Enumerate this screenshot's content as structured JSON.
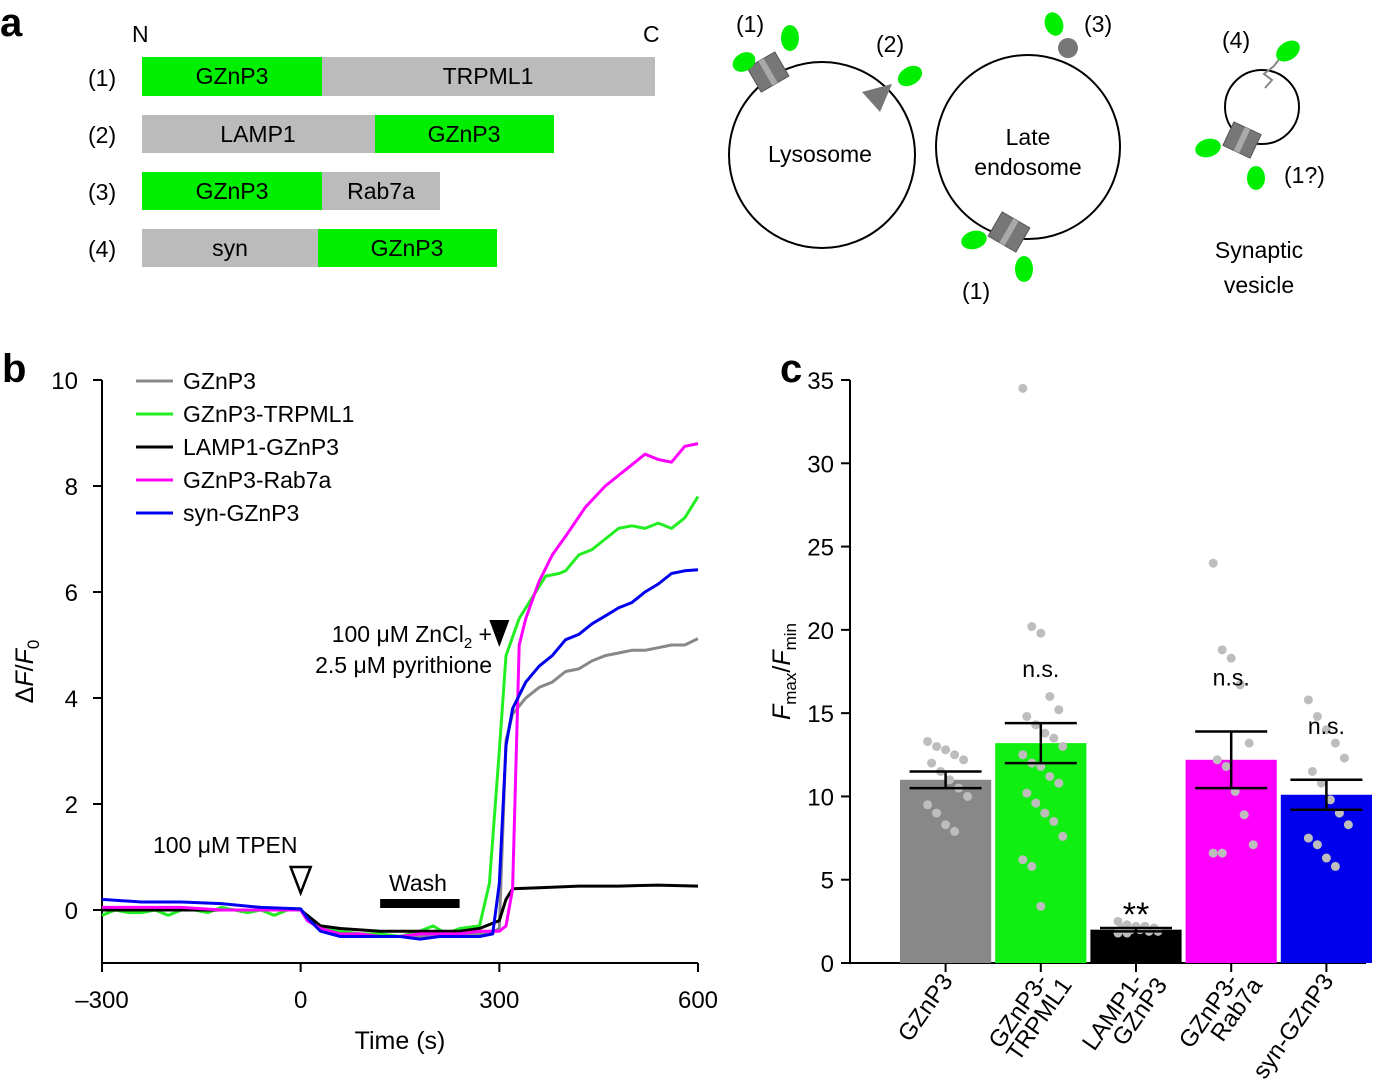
{
  "panel_a": {
    "label": "a",
    "n_term": "N",
    "c_term": "C",
    "constructs": [
      {
        "num": "(1)",
        "segments": [
          {
            "text": "GZnP3",
            "color": "#00ee00"
          },
          {
            "text": "TRPML1",
            "color": "#bbbbbb"
          }
        ]
      },
      {
        "num": "(2)",
        "segments": [
          {
            "text": "LAMP1",
            "color": "#bbbbbb"
          },
          {
            "text": "GZnP3",
            "color": "#00ee00"
          }
        ]
      },
      {
        "num": "(3)",
        "segments": [
          {
            "text": "GZnP3",
            "color": "#00ee00"
          },
          {
            "text": "Rab7a",
            "color": "#bbbbbb"
          }
        ]
      },
      {
        "num": "(4)",
        "segments": [
          {
            "text": "syn",
            "color": "#bbbbbb"
          },
          {
            "text": "GZnP3",
            "color": "#00ee00"
          }
        ]
      }
    ],
    "organelles": {
      "lysosome": {
        "name": "Lysosome",
        "marks": [
          "(1)",
          "(2)"
        ]
      },
      "late_endosome": {
        "name_line1": "Late",
        "name_line2": "endosome",
        "marks": [
          "(3)",
          "(1)"
        ]
      },
      "synaptic_vesicle": {
        "name_line1": "Synaptic",
        "name_line2": "vesicle",
        "marks": [
          "(4)",
          "(1?)"
        ]
      }
    }
  },
  "chart_data": [
    {
      "panel": "b",
      "type": "line",
      "xlabel": "Time (s)",
      "ylabel": "ΔF/F0",
      "xlim": [
        -300,
        600
      ],
      "ylim": [
        -1,
        10
      ],
      "xticks": [
        -300,
        0,
        300,
        600
      ],
      "xtick_labels": [
        "–300",
        "0",
        "300",
        "600"
      ],
      "yticks": [
        0,
        2,
        4,
        6,
        8,
        10
      ],
      "annotations": {
        "tpen": "100 μM TPEN",
        "wash": "Wash",
        "wash_range": [
          120,
          240
        ],
        "zn_line1": "100 μM ZnCl2 +",
        "zn_line2": "2.5 μM pyrithione",
        "tpen_time": 0,
        "zn_time": 300
      },
      "series": [
        {
          "name": "GZnP3",
          "color": "#888888",
          "x": [
            -300,
            -270,
            -240,
            -210,
            -180,
            -150,
            -120,
            -90,
            -60,
            -30,
            0,
            10,
            30,
            60,
            90,
            120,
            150,
            180,
            210,
            240,
            270,
            285,
            300,
            310,
            320,
            340,
            360,
            380,
            400,
            420,
            440,
            460,
            480,
            500,
            520,
            540,
            560,
            580,
            600
          ],
          "y": [
            0.05,
            0.02,
            0.0,
            0.0,
            0.0,
            0.0,
            0.0,
            0.0,
            0.0,
            0.0,
            0.0,
            -0.15,
            -0.35,
            -0.45,
            -0.5,
            -0.5,
            -0.5,
            -0.5,
            -0.5,
            -0.45,
            -0.45,
            -0.45,
            -0.35,
            3.2,
            3.7,
            4.0,
            4.2,
            4.3,
            4.5,
            4.55,
            4.7,
            4.8,
            4.85,
            4.9,
            4.9,
            4.95,
            5.0,
            5.0,
            5.12
          ]
        },
        {
          "name": "GZnP3-TRPML1",
          "color": "#22ee22",
          "x": [
            -300,
            -280,
            -260,
            -240,
            -220,
            -200,
            -180,
            -160,
            -140,
            -120,
            -100,
            -80,
            -60,
            -40,
            -20,
            0,
            10,
            30,
            60,
            90,
            120,
            150,
            180,
            200,
            220,
            240,
            270,
            285,
            300,
            310,
            330,
            350,
            370,
            390,
            400,
            420,
            440,
            460,
            480,
            500,
            520,
            540,
            560,
            580,
            600
          ],
          "y": [
            -0.1,
            0.0,
            -0.05,
            -0.05,
            0.0,
            -0.1,
            0.0,
            0.0,
            -0.05,
            0.05,
            0.0,
            -0.05,
            0.0,
            -0.1,
            0.0,
            0.0,
            -0.15,
            -0.35,
            -0.4,
            -0.45,
            -0.45,
            -0.5,
            -0.4,
            -0.3,
            -0.45,
            -0.35,
            -0.3,
            0.5,
            3.0,
            4.8,
            5.5,
            5.9,
            6.3,
            6.35,
            6.4,
            6.7,
            6.8,
            7.0,
            7.2,
            7.25,
            7.2,
            7.3,
            7.2,
            7.4,
            7.8
          ]
        },
        {
          "name": "LAMP1-GZnP3",
          "color": "#000000",
          "x": [
            -300,
            -240,
            -180,
            -120,
            -60,
            0,
            10,
            30,
            60,
            120,
            180,
            240,
            270,
            300,
            310,
            320,
            360,
            420,
            480,
            540,
            600
          ],
          "y": [
            0.0,
            0.0,
            0.0,
            0.0,
            0.0,
            0.0,
            -0.1,
            -0.3,
            -0.35,
            -0.4,
            -0.4,
            -0.4,
            -0.35,
            -0.2,
            0.2,
            0.4,
            0.42,
            0.45,
            0.45,
            0.47,
            0.45
          ]
        },
        {
          "name": "GZnP3-Rab7a",
          "color": "#ff00ff",
          "x": [
            -300,
            -240,
            -180,
            -120,
            -60,
            0,
            10,
            30,
            60,
            90,
            120,
            150,
            180,
            210,
            240,
            270,
            300,
            310,
            320,
            330,
            340,
            360,
            380,
            400,
            430,
            460,
            490,
            520,
            540,
            560,
            580,
            600
          ],
          "y": [
            0.05,
            0.05,
            0.05,
            0.0,
            0.0,
            0.0,
            -0.2,
            -0.35,
            -0.45,
            -0.45,
            -0.5,
            -0.5,
            -0.45,
            -0.45,
            -0.45,
            -0.4,
            -0.4,
            -0.3,
            0.4,
            5.0,
            5.5,
            6.2,
            6.7,
            7.05,
            7.6,
            8.0,
            8.3,
            8.6,
            8.5,
            8.45,
            8.75,
            8.8
          ]
        },
        {
          "name": "syn-GZnP3",
          "color": "#0000ee",
          "x": [
            -300,
            -240,
            -180,
            -120,
            -60,
            0,
            10,
            30,
            60,
            90,
            120,
            150,
            180,
            210,
            240,
            270,
            290,
            300,
            310,
            320,
            340,
            360,
            380,
            400,
            420,
            440,
            460,
            480,
            500,
            520,
            540,
            560,
            580,
            600
          ],
          "y": [
            0.2,
            0.15,
            0.15,
            0.12,
            0.05,
            0.02,
            -0.15,
            -0.4,
            -0.5,
            -0.5,
            -0.5,
            -0.5,
            -0.55,
            -0.5,
            -0.5,
            -0.5,
            -0.45,
            0.5,
            3.1,
            3.8,
            4.3,
            4.6,
            4.8,
            5.1,
            5.2,
            5.4,
            5.55,
            5.7,
            5.8,
            6.0,
            6.15,
            6.35,
            6.4,
            6.42
          ]
        }
      ]
    },
    {
      "panel": "c",
      "type": "bar",
      "ylabel": "Fmax/Fmin",
      "ylim": [
        0,
        35
      ],
      "yticks": [
        0,
        5,
        10,
        15,
        20,
        25,
        30,
        35
      ],
      "categories": [
        "GZnP3",
        "GZnP3-TRPML1",
        "LAMP1-GZnP3",
        "GZnP3-Rab7a",
        "syn-GZnP3"
      ],
      "cat_line1": [
        "GZnP3",
        "GZnP3-",
        "LAMP1-",
        "GZnP3-",
        "syn-GZnP3"
      ],
      "cat_line2": [
        "",
        "TRPML1",
        "GZnP3",
        "Rab7a",
        ""
      ],
      "values": [
        11.0,
        13.2,
        2.0,
        12.2,
        10.1
      ],
      "errors": [
        0.5,
        1.2,
        0.1,
        1.7,
        0.9
      ],
      "colors": [
        "#888888",
        "#11ee11",
        "#000000",
        "#ff00ff",
        "#0000ee"
      ],
      "significance": [
        "",
        "n.s.",
        "**",
        "n.s.",
        "n.s."
      ],
      "points": [
        [
          13.3,
          13.0,
          12.8,
          12.5,
          12.2,
          12.0,
          11.5,
          11.0,
          10.5,
          10.0,
          9.5,
          9.0,
          8.3,
          7.9
        ],
        [
          34.5,
          20.2,
          19.8,
          16.0,
          15.2,
          14.8,
          14.3,
          13.8,
          13.5,
          13.0,
          12.5,
          12.0,
          11.8,
          11.2,
          10.8,
          10.2,
          9.6,
          9.0,
          8.5,
          7.6,
          6.2,
          5.8,
          3.4
        ],
        [
          2.5,
          2.3,
          2.2,
          2.2,
          2.1,
          2.1,
          2.0,
          2.0,
          1.9,
          1.9,
          1.8,
          1.8
        ],
        [
          24.0,
          18.8,
          18.3,
          16.7,
          13.2,
          12.2,
          11.8,
          10.3,
          8.9,
          7.1,
          6.6,
          6.6
        ],
        [
          15.8,
          14.8,
          14.0,
          13.2,
          12.3,
          11.5,
          10.8,
          9.8,
          9.0,
          8.3,
          7.5,
          7.1,
          6.3,
          5.8
        ]
      ]
    }
  ]
}
